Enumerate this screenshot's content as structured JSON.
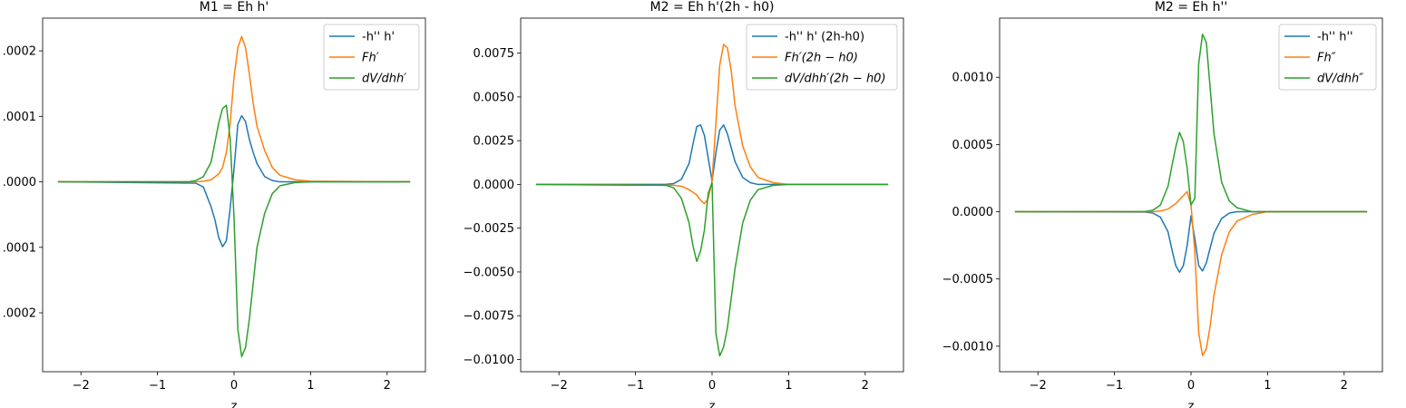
{
  "chart_data": [
    {
      "type": "line",
      "title": "M1 = Eh h'",
      "xlabel": "z",
      "ylabel": "",
      "xlim": [
        -2.5,
        2.5
      ],
      "ylim": [
        -0.00029,
        0.00025
      ],
      "xticks": [
        -2,
        -1,
        0,
        1,
        2
      ],
      "xtick_labels": [
        "−2",
        "−1",
        "0",
        "1",
        "2"
      ],
      "yticks": [
        -0.0002,
        -0.0001,
        0,
        0.0001,
        0.0002
      ],
      "ytick_labels": [
        ".0002",
        ".0001",
        ".0000",
        ".0001",
        ".0002"
      ],
      "grid": false,
      "legend_position": "top-right",
      "series": [
        {
          "name": "-h'' h'",
          "color": "#1f77b4",
          "x": [
            -2.3,
            -0.5,
            -0.4,
            -0.3,
            -0.25,
            -0.2,
            -0.15,
            -0.1,
            -0.05,
            0,
            0.05,
            0.1,
            0.15,
            0.2,
            0.25,
            0.3,
            0.4,
            0.5,
            0.6,
            1.0,
            2.3
          ],
          "y": [
            0,
            -2e-06,
            -8e-06,
            -3.8e-05,
            -5.8e-05,
            -8.5e-05,
            -9.9e-05,
            -9e-05,
            -4e-05,
            2e-05,
            8.8e-05,
            0.000101,
            9.2e-05,
            6.5e-05,
            4.5e-05,
            2.8e-05,
            8e-06,
            2e-06,
            0,
            0,
            0
          ]
        },
        {
          "name": "Fh′",
          "color": "#ff7f0e",
          "x": [
            -2.3,
            -0.5,
            -0.4,
            -0.3,
            -0.2,
            -0.15,
            -0.1,
            -0.05,
            0,
            0.05,
            0.1,
            0.15,
            0.2,
            0.25,
            0.3,
            0.4,
            0.5,
            0.6,
            0.8,
            1.0,
            2.3
          ],
          "y": [
            0,
            0,
            1e-06,
            3e-06,
            1.2e-05,
            2.2e-05,
            4.5e-05,
            9e-05,
            0.00016,
            0.000205,
            0.000222,
            0.000205,
            0.000165,
            0.00012,
            8.5e-05,
            4.8e-05,
            2.2e-05,
            1e-05,
            3e-06,
            1e-06,
            0
          ]
        },
        {
          "name": "dV/dhh′",
          "color": "#2ca02c",
          "x": [
            -2.3,
            -0.6,
            -0.5,
            -0.4,
            -0.3,
            -0.25,
            -0.2,
            -0.15,
            -0.1,
            -0.05,
            0,
            0.05,
            0.1,
            0.15,
            0.2,
            0.25,
            0.3,
            0.4,
            0.5,
            0.6,
            0.8,
            1.0,
            2.3
          ],
          "y": [
            0,
            0,
            2e-06,
            8e-06,
            3e-05,
            6e-05,
            9e-05,
            0.000112,
            0.000117,
            6.5e-05,
            -5.5e-05,
            -0.000225,
            -0.000267,
            -0.000253,
            -0.00021,
            -0.000155,
            -0.0001,
            -4.8e-05,
            -1.8e-05,
            -6e-06,
            -1e-06,
            0,
            0
          ]
        }
      ]
    },
    {
      "type": "line",
      "title": "M2 = Eh h'(2h - h0)",
      "xlabel": "z",
      "ylabel": "",
      "xlim": [
        -2.5,
        2.5
      ],
      "ylim": [
        -0.0107,
        0.0095
      ],
      "xticks": [
        -2,
        -1,
        0,
        1,
        2
      ],
      "xtick_labels": [
        "−2",
        "−1",
        "0",
        "1",
        "2"
      ],
      "yticks": [
        -0.01,
        -0.0075,
        -0.005,
        -0.0025,
        0,
        0.0025,
        0.005,
        0.0075
      ],
      "ytick_labels": [
        "−0.0100",
        "−0.0075",
        "−0.0050",
        "−0.0025",
        "0.0000",
        "0.0025",
        "0.0050",
        "0.0075"
      ],
      "grid": false,
      "legend_position": "top-right",
      "series": [
        {
          "name": "-h'' h' (2h-h0)",
          "color": "#1f77b4",
          "x": [
            -2.3,
            -0.6,
            -0.5,
            -0.4,
            -0.3,
            -0.25,
            -0.2,
            -0.15,
            -0.1,
            -0.05,
            0,
            0.05,
            0.1,
            0.15,
            0.2,
            0.25,
            0.3,
            0.4,
            0.5,
            0.6,
            2.3
          ],
          "y": [
            0,
            1e-05,
            5e-05,
            0.0003,
            0.0012,
            0.0023,
            0.0033,
            0.0034,
            0.0028,
            0.0015,
            0.0002,
            0.0018,
            0.0031,
            0.0034,
            0.0029,
            0.0021,
            0.0013,
            0.0004,
            0.0001,
            0,
            0
          ]
        },
        {
          "name": "Fh′(2h − h0)",
          "color": "#ff7f0e",
          "x": [
            -2.3,
            -0.5,
            -0.4,
            -0.3,
            -0.2,
            -0.15,
            -0.1,
            -0.05,
            0,
            0.05,
            0.1,
            0.15,
            0.2,
            0.25,
            0.3,
            0.4,
            0.5,
            0.6,
            0.8,
            1.0,
            2.3
          ],
          "y": [
            0,
            -5e-05,
            -0.0001,
            -0.0003,
            -0.0006,
            -0.0009,
            -0.0011,
            -0.0008,
            0.0002,
            0.0035,
            0.0068,
            0.008,
            0.0078,
            0.0065,
            0.0045,
            0.0022,
            0.001,
            0.0004,
            0.0001,
            0,
            0
          ]
        },
        {
          "name": "dV/dhh′(2h − h0)",
          "color": "#2ca02c",
          "x": [
            -2.3,
            -0.6,
            -0.5,
            -0.4,
            -0.3,
            -0.25,
            -0.2,
            -0.15,
            -0.1,
            -0.05,
            0,
            0.05,
            0.1,
            0.15,
            0.2,
            0.25,
            0.3,
            0.4,
            0.5,
            0.6,
            0.8,
            1.0,
            2.3
          ],
          "y": [
            0,
            -5e-05,
            -0.0002,
            -0.0008,
            -0.0022,
            -0.0035,
            -0.0044,
            -0.0038,
            -0.0026,
            -0.0005,
            0.0001,
            -0.0085,
            -0.0098,
            -0.0093,
            -0.0082,
            -0.0065,
            -0.0048,
            -0.0022,
            -0.0009,
            -0.0003,
            -5e-05,
            0,
            0
          ]
        }
      ]
    },
    {
      "type": "line",
      "title": "M2 = Eh h''",
      "xlabel": "z",
      "ylabel": "",
      "xlim": [
        -2.5,
        2.5
      ],
      "ylim": [
        -0.00119,
        0.00144
      ],
      "xticks": [
        -2,
        -1,
        0,
        1,
        2
      ],
      "xtick_labels": [
        "−2",
        "−1",
        "0",
        "1",
        "2"
      ],
      "yticks": [
        -0.001,
        -0.0005,
        0,
        0.0005,
        0.001
      ],
      "ytick_labels": [
        "−0.0010",
        "−0.0005",
        "0.0000",
        "0.0005",
        "0.0010"
      ],
      "grid": false,
      "legend_position": "top-right",
      "series": [
        {
          "name": "-h'' h''",
          "color": "#1f77b4",
          "x": [
            -2.3,
            -0.6,
            -0.5,
            -0.4,
            -0.3,
            -0.25,
            -0.2,
            -0.15,
            -0.1,
            -0.05,
            0,
            0.05,
            0.1,
            0.15,
            0.2,
            0.25,
            0.3,
            0.4,
            0.5,
            0.6,
            2.3
          ],
          "y": [
            0,
            -2e-06,
            -1e-05,
            -4e-05,
            -0.00015,
            -0.00028,
            -0.0004,
            -0.00045,
            -0.0004,
            -0.00025,
            -3e-05,
            -0.0002,
            -0.0004,
            -0.00044,
            -0.00038,
            -0.00027,
            -0.00016,
            -5e-05,
            -1e-05,
            0,
            0
          ]
        },
        {
          "name": "Fh″",
          "color": "#ff7f0e",
          "x": [
            -2.3,
            -0.5,
            -0.4,
            -0.3,
            -0.2,
            -0.15,
            -0.1,
            -0.05,
            0,
            0.05,
            0.1,
            0.15,
            0.2,
            0.25,
            0.3,
            0.4,
            0.5,
            0.6,
            0.8,
            1.0,
            2.3
          ],
          "y": [
            0,
            0,
            5e-06,
            2e-05,
            6e-05,
            9e-05,
            0.00012,
            0.00015,
            5e-05,
            -0.0003,
            -0.0009,
            -0.00107,
            -0.00102,
            -0.00085,
            -0.00062,
            -0.00032,
            -0.00015,
            -7e-05,
            -2e-05,
            0,
            0
          ]
        },
        {
          "name": "dV/dhh″",
          "color": "#2ca02c",
          "x": [
            -2.3,
            -0.6,
            -0.5,
            -0.4,
            -0.3,
            -0.25,
            -0.2,
            -0.15,
            -0.1,
            -0.05,
            0,
            0.05,
            0.1,
            0.15,
            0.2,
            0.25,
            0.3,
            0.4,
            0.5,
            0.6,
            0.8,
            1.0,
            2.3
          ],
          "y": [
            0,
            2e-06,
            1e-05,
            5e-05,
            0.00019,
            0.00034,
            0.00048,
            0.00059,
            0.00052,
            0.00032,
            5e-05,
            0.0001,
            0.0011,
            0.00132,
            0.00126,
            0.00092,
            0.00058,
            0.00022,
            8e-05,
            3e-05,
            0,
            0,
            0
          ]
        }
      ]
    }
  ]
}
